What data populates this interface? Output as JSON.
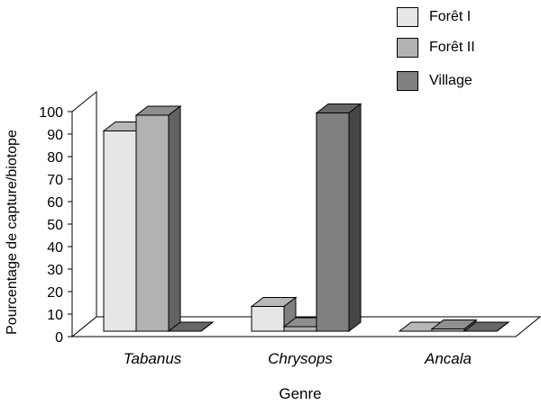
{
  "chart_data": {
    "type": "bar",
    "categories": [
      "Tabanus",
      "Chrysops",
      "Ancala"
    ],
    "series": [
      {
        "name": "Forêt I",
        "values": [
          89,
          11,
          0
        ],
        "color": "#e6e6e6"
      },
      {
        "name": "Forêt II",
        "values": [
          96,
          2,
          1
        ],
        "color": "#b2b2b2"
      },
      {
        "name": "Village",
        "values": [
          0,
          97,
          0
        ],
        "color": "#808080"
      }
    ],
    "title": "",
    "xlabel": "Genre",
    "ylabel": "Pourcentage de capture/biotope",
    "ylim": [
      0,
      100
    ],
    "yticks": [
      0,
      10,
      20,
      30,
      40,
      50,
      60,
      70,
      80,
      90,
      100
    ],
    "three_d": true,
    "legend_position": "top-right",
    "grid": false
  }
}
